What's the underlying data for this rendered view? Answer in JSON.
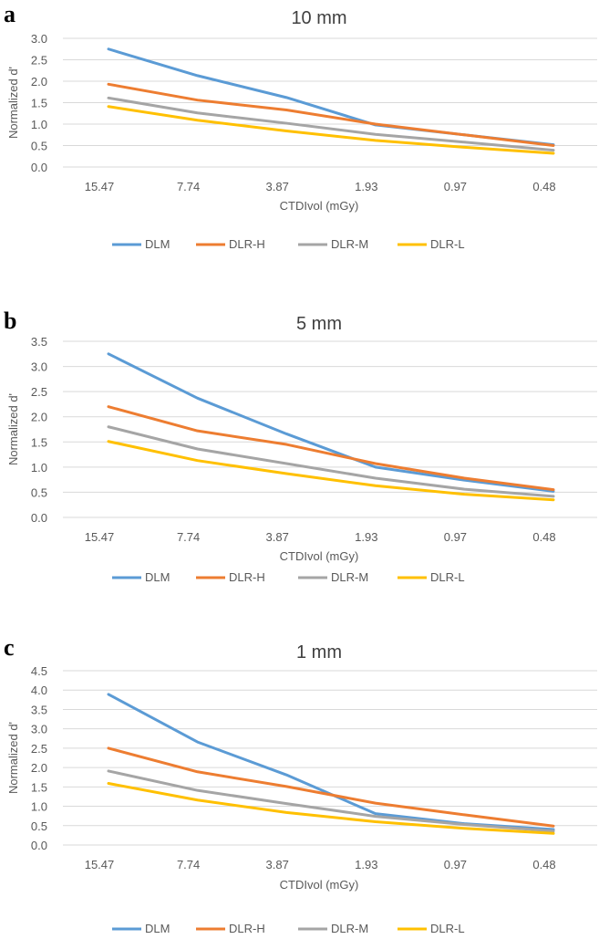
{
  "chart_data": [
    {
      "type": "line",
      "panel_label": "a",
      "title": "10 mm",
      "xlabel": "CTDIvol  (mGy)",
      "ylabel": "Normalized  d'",
      "categories": [
        "15.47",
        "7.74",
        "3.87",
        "1.93",
        "0.97",
        "0.48"
      ],
      "ylim": [
        0,
        3.0
      ],
      "yticks": [
        "0.0",
        "0.5",
        "1.0",
        "1.5",
        "2.0",
        "2.5",
        "3.0"
      ],
      "grid": true,
      "legend_position": "bottom",
      "series": [
        {
          "name": "DLM",
          "color": "#5B9BD5",
          "values": [
            2.75,
            2.13,
            1.62,
            0.98,
            0.75,
            0.52
          ]
        },
        {
          "name": "DLR-H",
          "color": "#ED7D31",
          "values": [
            1.93,
            1.56,
            1.33,
            1.0,
            0.75,
            0.5
          ]
        },
        {
          "name": "DLR-M",
          "color": "#A5A5A5",
          "values": [
            1.61,
            1.26,
            1.02,
            0.76,
            0.58,
            0.39
          ]
        },
        {
          "name": "DLR-L",
          "color": "#FFC000",
          "values": [
            1.41,
            1.09,
            0.84,
            0.62,
            0.46,
            0.32
          ]
        }
      ]
    },
    {
      "type": "line",
      "panel_label": "b",
      "title": "5 mm",
      "xlabel": "CTDIvol  (mGy)",
      "ylabel": "Normalized  d'",
      "categories": [
        "15.47",
        "7.74",
        "3.87",
        "1.93",
        "0.97",
        "0.48"
      ],
      "ylim": [
        0,
        3.5
      ],
      "yticks": [
        "0.0",
        "0.5",
        "1.0",
        "1.5",
        "2.0",
        "2.5",
        "3.0",
        "3.5"
      ],
      "grid": true,
      "legend_position": "bottom",
      "series": [
        {
          "name": "DLM",
          "color": "#5B9BD5",
          "values": [
            3.25,
            2.37,
            1.66,
            1.0,
            0.74,
            0.52
          ]
        },
        {
          "name": "DLR-H",
          "color": "#ED7D31",
          "values": [
            2.2,
            1.72,
            1.45,
            1.07,
            0.78,
            0.55
          ]
        },
        {
          "name": "DLR-M",
          "color": "#A5A5A5",
          "values": [
            1.8,
            1.36,
            1.07,
            0.78,
            0.56,
            0.42
          ]
        },
        {
          "name": "DLR-L",
          "color": "#FFC000",
          "values": [
            1.51,
            1.13,
            0.87,
            0.63,
            0.46,
            0.35
          ]
        }
      ]
    },
    {
      "type": "line",
      "panel_label": "c",
      "title": "1 mm",
      "xlabel": "CTDIvol  (mGy)",
      "ylabel": "Normalized  d'",
      "categories": [
        "15.47",
        "7.74",
        "3.87",
        "1.93",
        "0.97",
        "0.48"
      ],
      "ylim": [
        0,
        4.5
      ],
      "yticks": [
        "0.0",
        "0.5",
        "1.0",
        "1.5",
        "2.0",
        "2.5",
        "3.0",
        "3.5",
        "4.0",
        "4.5"
      ],
      "grid": true,
      "legend_position": "bottom",
      "series": [
        {
          "name": "DLM",
          "color": "#5B9BD5",
          "values": [
            3.89,
            2.66,
            1.81,
            0.81,
            0.55,
            0.4
          ]
        },
        {
          "name": "DLR-H",
          "color": "#ED7D31",
          "values": [
            2.5,
            1.89,
            1.51,
            1.08,
            0.78,
            0.49
          ]
        },
        {
          "name": "DLR-M",
          "color": "#A5A5A5",
          "values": [
            1.91,
            1.41,
            1.07,
            0.74,
            0.53,
            0.36
          ]
        },
        {
          "name": "DLR-L",
          "color": "#FFC000",
          "values": [
            1.59,
            1.16,
            0.84,
            0.6,
            0.43,
            0.3
          ]
        }
      ]
    }
  ]
}
